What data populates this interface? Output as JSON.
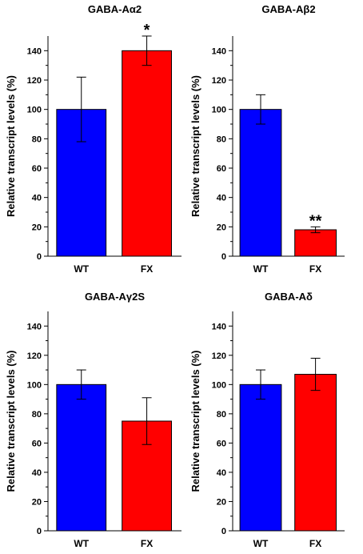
{
  "chart_data": [
    {
      "type": "bar",
      "title": "GABA-Aα2",
      "ylabel": "Relative transcript levels (%)",
      "categories": [
        "WT",
        "FX"
      ],
      "values": [
        100,
        140
      ],
      "errors": [
        22,
        10
      ],
      "significance": [
        "",
        "*"
      ],
      "ylim": [
        0,
        150
      ],
      "yticks": [
        0,
        20,
        40,
        60,
        80,
        100,
        120,
        140
      ],
      "colors": [
        "#0000ff",
        "#ff0000"
      ],
      "grid": false
    },
    {
      "type": "bar",
      "title": "GABA-Aβ2",
      "ylabel": "Relative transcript levels (%)",
      "categories": [
        "WT",
        "FX"
      ],
      "values": [
        100,
        18
      ],
      "errors": [
        10,
        2
      ],
      "significance": [
        "",
        "**"
      ],
      "ylim": [
        0,
        150
      ],
      "yticks": [
        0,
        20,
        40,
        60,
        80,
        100,
        120,
        140
      ],
      "colors": [
        "#0000ff",
        "#ff0000"
      ],
      "grid": false
    },
    {
      "type": "bar",
      "title": "GABA-Aγ2S",
      "ylabel": "Relative transcript levels (%)",
      "categories": [
        "WT",
        "FX"
      ],
      "values": [
        100,
        75
      ],
      "errors": [
        10,
        16
      ],
      "significance": [
        "",
        ""
      ],
      "ylim": [
        0,
        150
      ],
      "yticks": [
        0,
        20,
        40,
        60,
        80,
        100,
        120,
        140
      ],
      "colors": [
        "#0000ff",
        "#ff0000"
      ],
      "grid": false
    },
    {
      "type": "bar",
      "title": "GABA-Aδ",
      "ylabel": "Relative transcript levels (%)",
      "categories": [
        "WT",
        "FX"
      ],
      "values": [
        100,
        107
      ],
      "errors": [
        10,
        11
      ],
      "significance": [
        "",
        ""
      ],
      "ylim": [
        0,
        150
      ],
      "yticks": [
        0,
        20,
        40,
        60,
        80,
        100,
        120,
        140
      ],
      "colors": [
        "#0000ff",
        "#ff0000"
      ],
      "grid": false
    }
  ]
}
